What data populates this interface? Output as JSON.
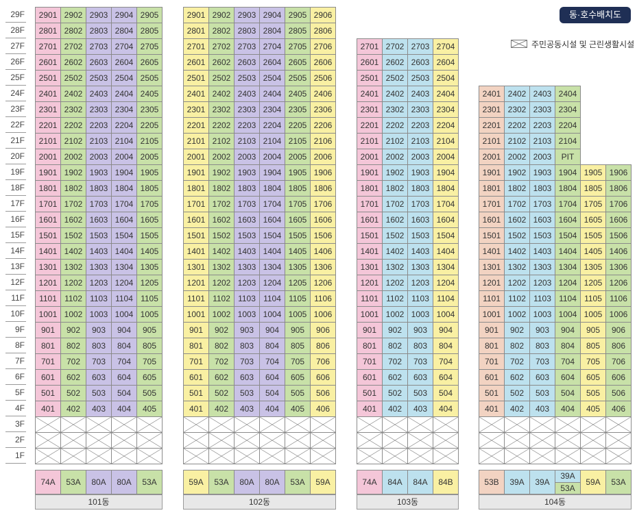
{
  "header": {
    "title": "동·호수배치도",
    "legend_label": "주민공동시설 및 근린생활시설"
  },
  "floors": [
    "29F",
    "28F",
    "27F",
    "26F",
    "25F",
    "24F",
    "23F",
    "22F",
    "21F",
    "20F",
    "19F",
    "18F",
    "17F",
    "16F",
    "15F",
    "14F",
    "13F",
    "12F",
    "11F",
    "10F",
    "9F",
    "8F",
    "7F",
    "6F",
    "5F",
    "4F",
    "3F",
    "2F",
    "1F"
  ],
  "colors": {
    "pink": "#f4c6d8",
    "green": "#c8e1a8",
    "purple": "#c9c2e6",
    "yellow": "#f9f0a3",
    "blue": "#bde1ee",
    "peach": "#f2d3c2",
    "gray": "#e8e8e8"
  },
  "buildings": [
    {
      "name": "101동",
      "max_floor": 29,
      "line_colors": [
        "pink",
        "green",
        "purple",
        "purple",
        "green"
      ],
      "line_counts": [
        5
      ],
      "types": [
        {
          "label": "74A",
          "color": "pink"
        },
        {
          "label": "53A",
          "color": "green"
        },
        {
          "label": "80A",
          "color": "purple"
        },
        {
          "label": "80A",
          "color": "purple"
        },
        {
          "label": "53A",
          "color": "green"
        }
      ]
    },
    {
      "name": "102동",
      "max_floor": 29,
      "line_colors": [
        "yellow",
        "green",
        "purple",
        "purple",
        "green",
        "yellow"
      ],
      "types": [
        {
          "label": "59A",
          "color": "yellow"
        },
        {
          "label": "53A",
          "color": "green"
        },
        {
          "label": "80A",
          "color": "purple"
        },
        {
          "label": "80A",
          "color": "purple"
        },
        {
          "label": "53A",
          "color": "green"
        },
        {
          "label": "59A",
          "color": "yellow"
        }
      ]
    },
    {
      "name": "103동",
      "max_floor": 27,
      "line_colors": [
        "pink",
        "blue",
        "blue",
        "yellow"
      ],
      "types": [
        {
          "label": "74A",
          "color": "pink"
        },
        {
          "label": "84A",
          "color": "blue"
        },
        {
          "label": "84A",
          "color": "blue"
        },
        {
          "label": "84B",
          "color": "yellow"
        }
      ]
    },
    {
      "name": "104동",
      "line_colors": [
        "peach",
        "blue",
        "blue",
        "green",
        "yellow",
        "green"
      ],
      "column_max_floor": [
        24,
        24,
        24,
        24,
        19,
        19
      ],
      "pit": {
        "column": 3,
        "floor": 20,
        "label": "PIT"
      },
      "types": [
        {
          "label": "53B",
          "color": "peach"
        },
        {
          "label": "39A",
          "color": "blue"
        },
        {
          "label": "39A",
          "color": "blue"
        },
        {
          "label_top": "39A",
          "label_bottom": "53A",
          "color_top": "blue",
          "color_bottom": "green"
        },
        {
          "label": "59A",
          "color": "yellow"
        },
        {
          "label": "53A",
          "color": "green"
        }
      ]
    }
  ]
}
